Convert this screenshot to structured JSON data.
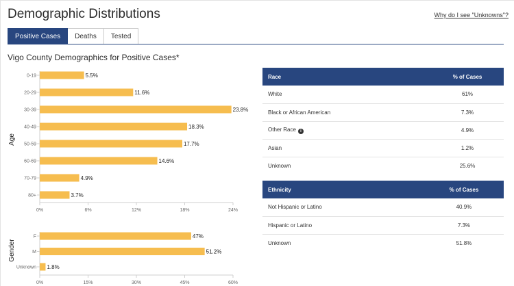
{
  "header": {
    "title": "Demographic Distributions",
    "why_link": "Why do I see \"Unknowns\"?"
  },
  "tabs": [
    {
      "label": "Positive Cases",
      "active": true
    },
    {
      "label": "Deaths",
      "active": false
    },
    {
      "label": "Tested",
      "active": false
    }
  ],
  "subtitle": "Vigo County Demographics for Positive Cases*",
  "chart_data": [
    {
      "type": "bar",
      "orientation": "horizontal",
      "ylabel": "Age",
      "categories": [
        "0-19",
        "20-29",
        "30-39",
        "40-49",
        "50-59",
        "60-69",
        "70-79",
        "80+"
      ],
      "values": [
        5.5,
        11.6,
        23.8,
        18.3,
        17.7,
        14.6,
        4.9,
        3.7
      ],
      "value_labels": [
        "5.5%",
        "11.6%",
        "23.8%",
        "18.3%",
        "17.7%",
        "14.6%",
        "4.9%",
        "3.7%"
      ],
      "xlim": [
        0,
        24
      ],
      "xticks": [
        0,
        6,
        12,
        18,
        24
      ],
      "xtick_labels": [
        "0%",
        "6%",
        "12%",
        "18%",
        "24%"
      ],
      "bar_color": "#f6bd4f"
    },
    {
      "type": "bar",
      "orientation": "horizontal",
      "ylabel": "Gender",
      "categories": [
        "F",
        "M",
        "Unknown"
      ],
      "values": [
        47,
        51.2,
        1.8
      ],
      "value_labels": [
        "47%",
        "51.2%",
        "1.8%"
      ],
      "xlim": [
        0,
        60
      ],
      "xticks": [
        0,
        15,
        30,
        45,
        60
      ],
      "xtick_labels": [
        "0%",
        "15%",
        "30%",
        "45%",
        "60%"
      ],
      "bar_color": "#f6bd4f"
    }
  ],
  "race_table": {
    "headers": [
      "Race",
      "% of Cases"
    ],
    "rows": [
      {
        "label": "White",
        "value": "61%"
      },
      {
        "label": "Black or African American",
        "value": "7.3%"
      },
      {
        "label": "Other Race",
        "value": "4.9%",
        "info": "i"
      },
      {
        "label": "Asian",
        "value": "1.2%"
      },
      {
        "label": "Unknown",
        "value": "25.6%"
      }
    ]
  },
  "ethnicity_table": {
    "headers": [
      "Ethnicity",
      "% of Cases"
    ],
    "rows": [
      {
        "label": "Not Hispanic or Latino",
        "value": "40.9%"
      },
      {
        "label": "Hispanic or Latino",
        "value": "7.3%"
      },
      {
        "label": "Unknown",
        "value": "51.8%"
      }
    ]
  },
  "colors": {
    "accent": "#28467f",
    "bar": "#f6bd4f"
  }
}
